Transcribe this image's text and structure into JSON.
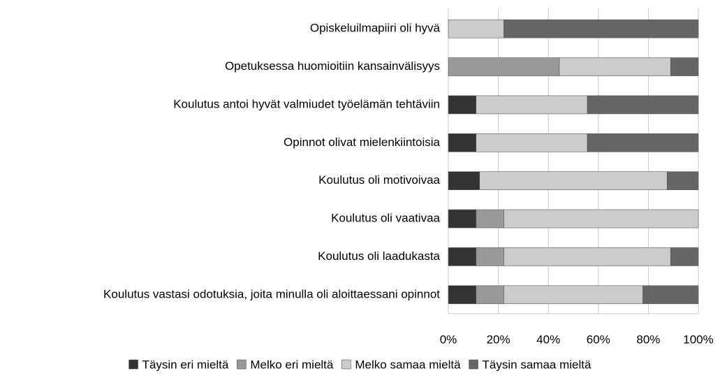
{
  "chart_data": {
    "type": "stacked-barh",
    "categories": [
      "Opiskeluilmapiiri oli hyvä",
      "Opetuksessa huomioitiin kansainvälisyys",
      "Koulutus antoi hyvät valmiudet työelämän tehtäviin",
      "Opinnot olivat mielenkiintoisia",
      "Koulutus oli motivoivaa",
      "Koulutus oli vaativaa",
      "Koulutus oli laadukasta",
      "Koulutus vastasi odotuksia, joita minulla oli aloittaessani opinnot"
    ],
    "series": [
      {
        "name": "Täysin eri mieltä",
        "color": "#333333",
        "values": [
          0,
          0,
          11.1,
          11.1,
          12.5,
          11.1,
          11.1,
          11.1
        ]
      },
      {
        "name": "Melko eri mieltä",
        "color": "#999999",
        "values": [
          0,
          44.4,
          0,
          0,
          0,
          11.1,
          11.1,
          11.1
        ]
      },
      {
        "name": "Melko samaa mieltä",
        "color": "#cccccc",
        "values": [
          22.2,
          44.5,
          44.5,
          44.5,
          75,
          77.8,
          66.7,
          55.6
        ]
      },
      {
        "name": "Täysin samaa mieltä",
        "color": "#666666",
        "values": [
          77.8,
          11.1,
          44.4,
          44.4,
          12.5,
          0,
          11.1,
          22.2
        ]
      }
    ],
    "xlim": [
      0,
      100
    ],
    "xticks": [
      {
        "value": 0,
        "label": "0%"
      },
      {
        "value": 20,
        "label": "20%"
      },
      {
        "value": 40,
        "label": "40%"
      },
      {
        "value": 60,
        "label": "60%"
      },
      {
        "value": 80,
        "label": "80%"
      },
      {
        "value": 100,
        "label": "100%"
      }
    ],
    "grid": true,
    "legend": "bottom"
  }
}
